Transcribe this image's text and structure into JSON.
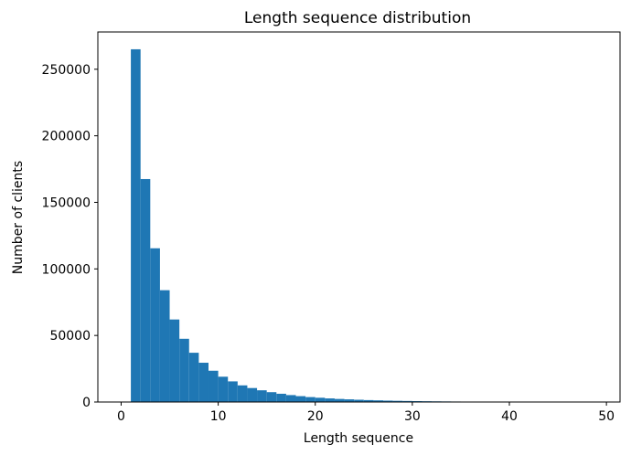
{
  "chart_data": {
    "type": "bar",
    "title": "Length sequence distribution",
    "xlabel": "Length sequence",
    "ylabel": "Number of clients",
    "bar_color": "#1f77b4",
    "xlim": [
      -2.4,
      51.4
    ],
    "ylim": [
      0,
      278000
    ],
    "xticks": [
      0,
      10,
      20,
      30,
      40,
      50
    ],
    "yticks": [
      0,
      50000,
      100000,
      150000,
      200000,
      250000
    ],
    "xtick_labels": [
      "0",
      "10",
      "20",
      "30",
      "40",
      "50"
    ],
    "ytick_labels": [
      "0",
      "50000",
      "100000",
      "150000",
      "200000",
      "250000"
    ],
    "bin_start": 1,
    "bin_width": 1,
    "values": [
      265000,
      167500,
      115500,
      84000,
      62000,
      47500,
      37000,
      29500,
      23500,
      19000,
      15500,
      12500,
      10500,
      8800,
      7400,
      6200,
      5200,
      4400,
      3700,
      3200,
      2700,
      2300,
      2000,
      1700,
      1450,
      1250,
      1050,
      900,
      780,
      670,
      580,
      500,
      430,
      370,
      320,
      280,
      240,
      210,
      180,
      155,
      135,
      115,
      100,
      85,
      75,
      65,
      55,
      48
    ],
    "grid": false,
    "legend": "none"
  }
}
